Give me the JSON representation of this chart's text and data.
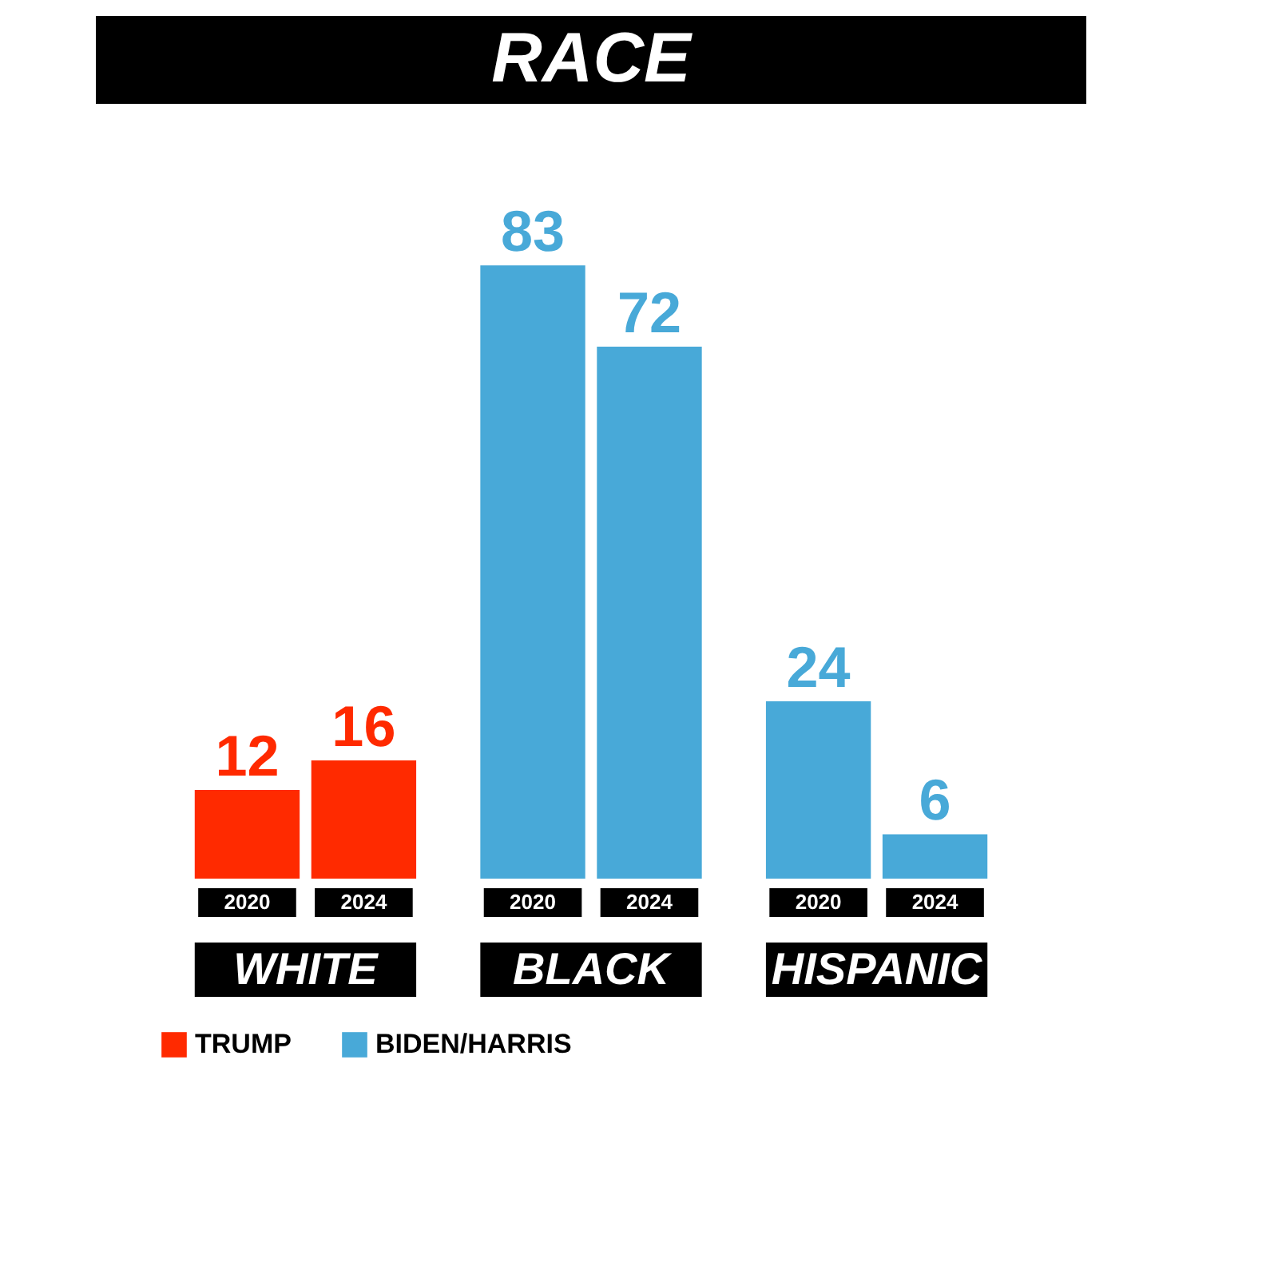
{
  "chart_data": {
    "type": "bar",
    "title": "RACE",
    "categories": [
      "2020",
      "2024",
      "2020",
      "2024",
      "2020",
      "2024"
    ],
    "series": [
      {
        "name": "TRUMP",
        "color": "#ff2a00",
        "values": [
          12,
          16,
          null,
          null,
          null,
          null
        ]
      },
      {
        "name": "BIDEN/HARRIS",
        "color": "#48a9d8",
        "values": [
          null,
          null,
          83,
          72,
          24,
          6
        ]
      }
    ],
    "annotations": [
      "WHITE",
      "BLACK",
      "HISPANIC"
    ],
    "data_labels": true,
    "legend": "bottom"
  }
}
